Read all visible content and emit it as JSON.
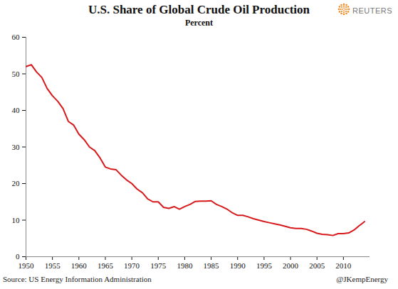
{
  "chart_data": {
    "type": "line",
    "title": "U.S. Share of  Global Crude Oil Production",
    "subtitle": "Percent",
    "source": "Source: US Energy Information Administration",
    "credit": "@JKempEnergy",
    "brand": "REUTERS",
    "x": [
      1950,
      1951,
      1952,
      1953,
      1954,
      1955,
      1956,
      1957,
      1958,
      1959,
      1960,
      1961,
      1962,
      1963,
      1964,
      1965,
      1966,
      1967,
      1968,
      1969,
      1970,
      1971,
      1972,
      1973,
      1974,
      1975,
      1976,
      1977,
      1978,
      1979,
      1980,
      1981,
      1982,
      1983,
      1984,
      1985,
      1986,
      1987,
      1988,
      1989,
      1990,
      1991,
      1992,
      1993,
      1994,
      1995,
      1996,
      1997,
      1998,
      1999,
      2000,
      2001,
      2002,
      2003,
      2004,
      2005,
      2006,
      2007,
      2008,
      2009,
      2010,
      2011,
      2012,
      2013,
      2014
    ],
    "values": [
      52,
      52.5,
      50.5,
      49,
      46,
      44,
      42.5,
      40.5,
      37,
      36,
      33.5,
      32,
      30,
      29,
      27,
      24.5,
      24,
      23.8,
      22.3,
      21,
      20,
      18.5,
      17.5,
      15.8,
      15,
      15,
      13.5,
      13.2,
      13.7,
      13,
      13.7,
      14.3,
      15.1,
      15.2,
      15.2,
      15.3,
      14.3,
      13.7,
      13,
      12,
      11.3,
      11.3,
      10.9,
      10.4,
      10,
      9.6,
      9.3,
      9,
      8.7,
      8.3,
      7.9,
      7.7,
      7.7,
      7.5,
      7,
      6.4,
      6.1,
      6,
      5.8,
      6.3,
      6.3,
      6.5,
      7.3,
      8.5,
      9.6
    ],
    "color": "#d7191c",
    "xlim": [
      1950,
      2015
    ],
    "xticks": [
      1950,
      1955,
      1960,
      1965,
      1970,
      1975,
      1980,
      1985,
      1990,
      1995,
      2000,
      2005,
      2010
    ],
    "ylim": [
      0,
      60
    ],
    "yticks": [
      0,
      10,
      20,
      30,
      40,
      50,
      60
    ],
    "grid": false
  }
}
